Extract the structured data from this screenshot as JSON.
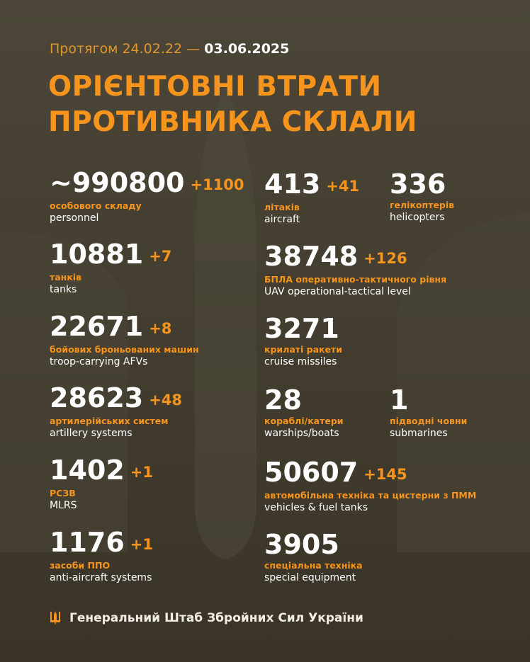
{
  "header": {
    "period_prefix": "Протягом 24.02.22 —",
    "period_end": "03.06.2025",
    "title_line1": "ОРІЄНТОВНІ ВТРАТИ",
    "title_line2": "ПРОТИВНИКА СКЛАЛИ"
  },
  "stats": {
    "personnel": {
      "value": "~990800",
      "inc": "+1100",
      "ua": "особового складу",
      "en": "personnel"
    },
    "tanks": {
      "value": "10881",
      "inc": "+7",
      "ua": "танків",
      "en": "tanks"
    },
    "afv": {
      "value": "22671",
      "inc": "+8",
      "ua": "бойових броньованих машин",
      "en": "troop-carrying AFVs"
    },
    "artillery": {
      "value": "28623",
      "inc": "+48",
      "ua": "артилерійських систем",
      "en": "artillery systems"
    },
    "mlrs": {
      "value": "1402",
      "inc": "+1",
      "ua": "РСЗВ",
      "en": "MLRS"
    },
    "aa": {
      "value": "1176",
      "inc": "+1",
      "ua": "засоби ППО",
      "en": "anti-aircraft systems"
    },
    "aircraft": {
      "value": "413",
      "inc": "+41",
      "ua": "літаків",
      "en": "aircraft"
    },
    "helicopters": {
      "value": "336",
      "ua": "гелікоптерів",
      "en": "helicopters"
    },
    "uav": {
      "value": "38748",
      "inc": "+126",
      "ua": "БПЛА оперативно-тактичного рівня",
      "en": "UAV operational-tactical level"
    },
    "missiles": {
      "value": "3271",
      "ua": "крилаті ракети",
      "en": "cruise missiles"
    },
    "warships": {
      "value": "28",
      "ua": "кораблі/катери",
      "en": "warships/boats"
    },
    "submarines": {
      "value": "1",
      "ua": "підводні човни",
      "en": "submarines"
    },
    "vehicles": {
      "value": "50607",
      "inc": "+145",
      "ua": "автомобільна техніка та цистерни з ПММ",
      "en": "vehicles & fuel tanks"
    },
    "special": {
      "value": "3905",
      "ua": "спеціальна техніка",
      "en": "special equipment"
    }
  },
  "footer": {
    "text": "Генеральний Штаб Збройних Сил України",
    "icon": "trident-icon"
  },
  "colors": {
    "accent": "#f7941d",
    "background": "#413c2f"
  }
}
